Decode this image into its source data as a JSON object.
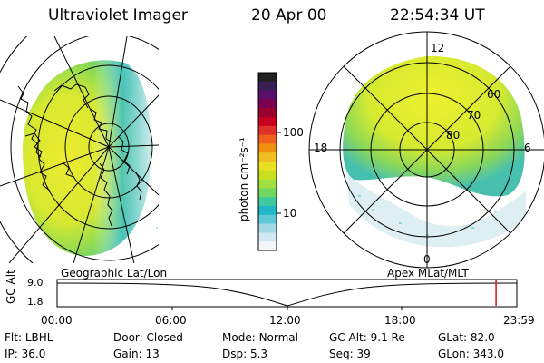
{
  "header": {
    "title": "Ultraviolet Imager",
    "date": "20 Apr 00",
    "time": "22:54:34 UT"
  },
  "colorbar": {
    "unit_label": "photon cm⁻²s⁻¹",
    "ticks": [
      "100",
      "10"
    ],
    "colors": [
      "#222222",
      "#3a1f55",
      "#5a0f6a",
      "#7a0050",
      "#9a0030",
      "#c80020",
      "#e0302a",
      "#f06020",
      "#f09010",
      "#f0c020",
      "#e8e020",
      "#c8e020",
      "#a0e040",
      "#70d860",
      "#40c8a0",
      "#20b8c8",
      "#60c8d8",
      "#a0d8e4",
      "#d0e8f0",
      "#f2f6f8"
    ]
  },
  "left_map": {
    "caption": "Geographic Lat/Lon"
  },
  "right_map": {
    "caption": "Apex MLat/MLT",
    "mlt_labels": {
      "top": "12",
      "left": "18",
      "right": "6",
      "bottom": "0"
    },
    "lat_labels": [
      "60",
      "70",
      "80"
    ]
  },
  "timeline": {
    "axis_label": "GC Alt",
    "y_ticks": [
      "9.0",
      "1.8"
    ],
    "x_ticks": [
      "00:00",
      "06:00",
      "12:00",
      "18:00",
      "23:59"
    ],
    "current_marker_hours": 22.9
  },
  "status": {
    "row1": [
      {
        "key": "Flt:",
        "val": "LBHL"
      },
      {
        "key": "Door:",
        "val": "Closed"
      },
      {
        "key": "Mode:",
        "val": "Normal"
      },
      {
        "key": "GC Alt:",
        "val": "9.1 Re"
      },
      {
        "key": "GLat:",
        "val": "82.0"
      }
    ],
    "row2": [
      {
        "key": "IP:",
        "val": "36.0"
      },
      {
        "key": "Gain:",
        "val": "13"
      },
      {
        "key": "Dsp:",
        "val": "5.3"
      },
      {
        "key": "Seq:",
        "val": "39"
      },
      {
        "key": "GLon:",
        "val": "343.0"
      }
    ]
  },
  "colors": {
    "green_yellow": "#e8e828",
    "green": "#7cd850",
    "cyan": "#40c0c8",
    "marker_red": "#e01010"
  }
}
